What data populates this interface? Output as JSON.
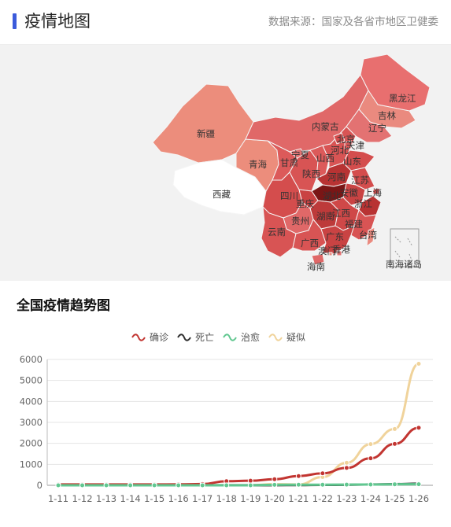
{
  "header": {
    "title": "疫情地图",
    "source": "数据来源：国家及各省市地区卫健委"
  },
  "map": {
    "provinces": [
      {
        "name": "黑龙江",
        "shade": "#e86f6f"
      },
      {
        "name": "吉林",
        "shade": "#ea8a7f"
      },
      {
        "name": "辽宁",
        "shade": "#e37272"
      },
      {
        "name": "内蒙古",
        "shade": "#e06868"
      },
      {
        "name": "新疆",
        "shade": "#ec8d7c"
      },
      {
        "name": "西藏",
        "shade": "#ffffff"
      },
      {
        "name": "青海",
        "shade": "#ec8d7c"
      },
      {
        "name": "甘肃",
        "shade": "#dc5a5a"
      },
      {
        "name": "宁夏",
        "shade": "#e37272"
      },
      {
        "name": "陕西",
        "shade": "#d85454"
      },
      {
        "name": "山西",
        "shade": "#dc5a5a"
      },
      {
        "name": "北京",
        "shade": "#d44d4d"
      },
      {
        "name": "天津",
        "shade": "#dc5a5a"
      },
      {
        "name": "河北",
        "shade": "#d85454"
      },
      {
        "name": "山东",
        "shade": "#d44d4d"
      },
      {
        "name": "河南",
        "shade": "#b83333"
      },
      {
        "name": "江苏",
        "shade": "#d44d4d"
      },
      {
        "name": "安徽",
        "shade": "#c94343"
      },
      {
        "name": "上海",
        "shade": "#d44d4d"
      },
      {
        "name": "湖北",
        "shade": "#7a1616"
      },
      {
        "name": "四川",
        "shade": "#d44d4d"
      },
      {
        "name": "重庆",
        "shade": "#c94343"
      },
      {
        "name": "湖南",
        "shade": "#bd3a3a"
      },
      {
        "name": "浙江",
        "shade": "#b83333"
      },
      {
        "name": "江西",
        "shade": "#cf4848"
      },
      {
        "name": "贵州",
        "shade": "#e06868"
      },
      {
        "name": "福建",
        "shade": "#d85454"
      },
      {
        "name": "云南",
        "shade": "#d85454"
      },
      {
        "name": "广西",
        "shade": "#d85454"
      },
      {
        "name": "广东",
        "shade": "#c94343"
      },
      {
        "name": "香港",
        "shade": "#e37272"
      },
      {
        "name": "澳门",
        "shade": "#ea8a7f"
      },
      {
        "name": "台湾",
        "shade": "#ea8a7f"
      },
      {
        "name": "海南",
        "shade": "#e06868"
      }
    ],
    "south_sea_label": "南海诸岛"
  },
  "trend": {
    "title": "全国疫情趋势图"
  },
  "chart_data": {
    "type": "line",
    "categories": [
      "1-11",
      "1-12",
      "1-13",
      "1-14",
      "1-15",
      "1-16",
      "1-17",
      "1-18",
      "1-19",
      "1-20",
      "1-21",
      "1-22",
      "1-23",
      "1-24",
      "1-25",
      "1-26"
    ],
    "ylim": [
      0,
      6000
    ],
    "yticks": [
      0,
      1000,
      2000,
      3000,
      4000,
      5000,
      6000
    ],
    "grid": true,
    "legend_position": "top-center",
    "series": [
      {
        "name": "确诊",
        "color": "#c23531",
        "values": [
          41,
          41,
          41,
          41,
          41,
          45,
          62,
          198,
          218,
          291,
          440,
          571,
          830,
          1287,
          1975,
          2744
        ]
      },
      {
        "name": "死亡",
        "color": "#2f2f2f",
        "values": [
          1,
          1,
          1,
          1,
          2,
          2,
          2,
          3,
          3,
          6,
          9,
          17,
          25,
          41,
          56,
          80
        ]
      },
      {
        "name": "治愈",
        "color": "#61c790",
        "values": [
          0,
          0,
          0,
          0,
          0,
          0,
          0,
          0,
          0,
          25,
          28,
          28,
          34,
          38,
          49,
          51
        ]
      },
      {
        "name": "疑似",
        "color": "#f0d39b",
        "values": [
          0,
          0,
          0,
          0,
          0,
          0,
          0,
          0,
          0,
          54,
          37,
          393,
          1072,
          1965,
          2684,
          5794
        ]
      }
    ]
  }
}
